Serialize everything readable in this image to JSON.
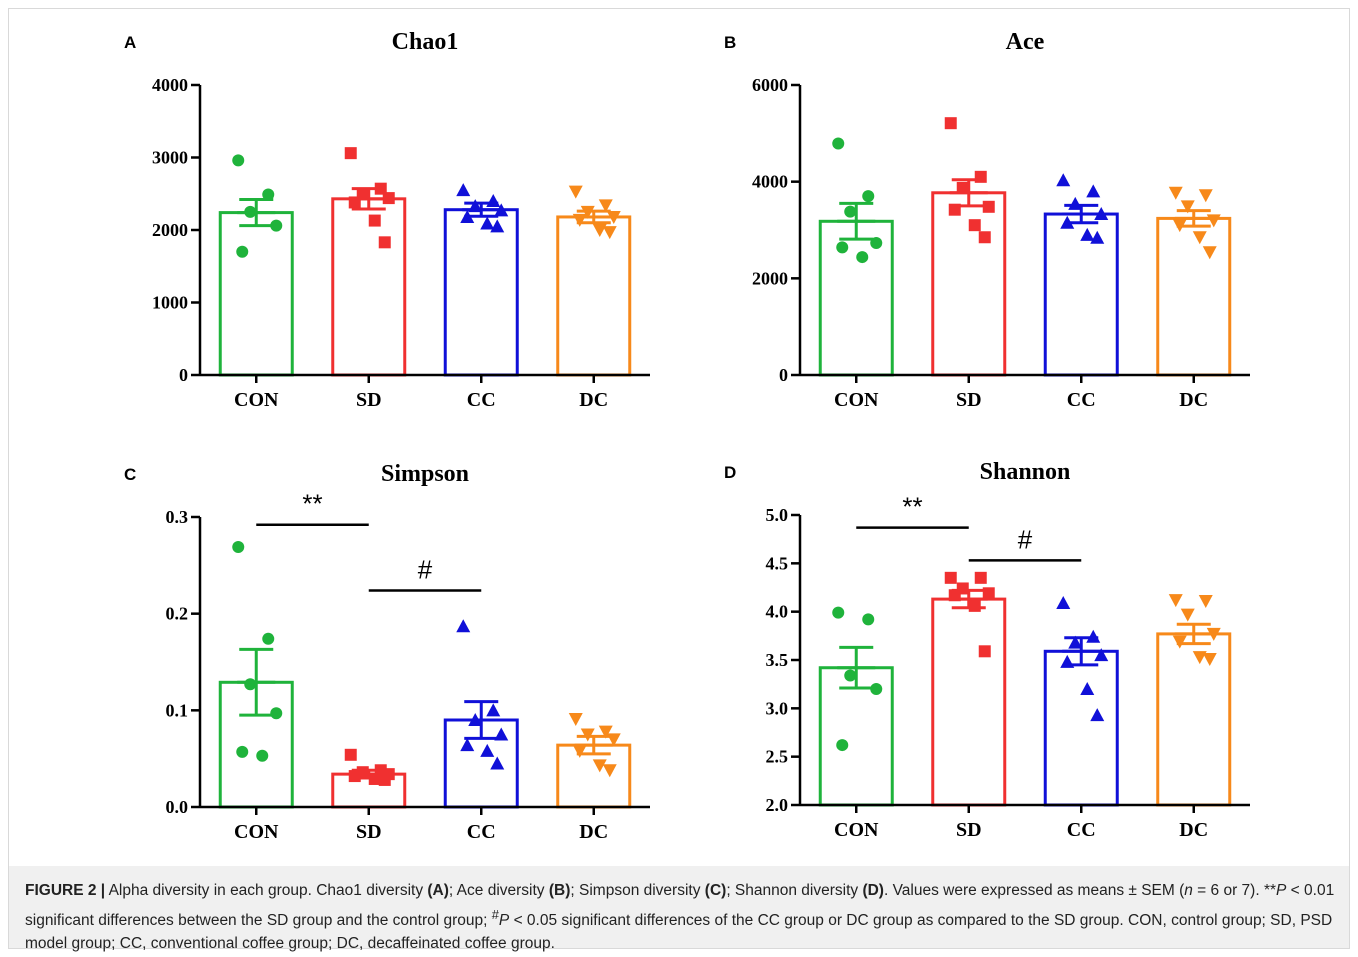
{
  "chart_data": [
    {
      "panel_letter": "A",
      "type": "bar",
      "title": "Chao1",
      "categories": [
        "CON",
        "SD",
        "CC",
        "DC"
      ],
      "ylim": [
        0,
        4000
      ],
      "yticks": [
        0,
        1000,
        2000,
        3000,
        4000
      ],
      "ytick_labels": [
        "0",
        "1000",
        "2000",
        "3000",
        "4000"
      ],
      "means": [
        2240,
        2430,
        2280,
        2180
      ],
      "sem": [
        180,
        140,
        90,
        80
      ],
      "points": [
        [
          2960,
          2490,
          2250,
          2060,
          1700
        ],
        [
          3060,
          2570,
          2500,
          2440,
          2380,
          2130,
          1830
        ],
        [
          2550,
          2400,
          2330,
          2270,
          2180,
          2090,
          2050
        ],
        [
          2530,
          2340,
          2250,
          2180,
          2140,
          2000,
          1970
        ]
      ],
      "markers": [
        "circle",
        "square",
        "triangle-up",
        "triangle-down"
      ],
      "colors": [
        "#1fb33b",
        "#f03030",
        "#1010d8",
        "#f7891a"
      ],
      "annotations": []
    },
    {
      "panel_letter": "B",
      "type": "bar",
      "title": "Ace",
      "categories": [
        "CON",
        "SD",
        "CC",
        "DC"
      ],
      "ylim": [
        0,
        6000
      ],
      "yticks": [
        0,
        2000,
        4000,
        6000
      ],
      "ytick_labels": [
        "0",
        "2000",
        "4000",
        "6000"
      ],
      "means": [
        3180,
        3770,
        3330,
        3240
      ],
      "sem": [
        370,
        270,
        180,
        160
      ],
      "points": [
        [
          4790,
          3700,
          3380,
          2730,
          2640,
          2440
        ],
        [
          5210,
          4100,
          3870,
          3480,
          3420,
          3100,
          2850
        ],
        [
          4030,
          3800,
          3540,
          3330,
          3150,
          2900,
          2840
        ],
        [
          3770,
          3720,
          3490,
          3200,
          3100,
          2850,
          2540
        ]
      ],
      "markers": [
        "circle",
        "square",
        "triangle-up",
        "triangle-down"
      ],
      "colors": [
        "#1fb33b",
        "#f03030",
        "#1010d8",
        "#f7891a"
      ],
      "annotations": []
    },
    {
      "panel_letter": "C",
      "type": "bar",
      "title": "Simpson",
      "categories": [
        "CON",
        "SD",
        "CC",
        "DC"
      ],
      "ylim": [
        0,
        0.3
      ],
      "yticks": [
        0,
        0.1,
        0.2,
        0.3
      ],
      "ytick_labels": [
        "0.0",
        "0.1",
        "0.2",
        "0.3"
      ],
      "means": [
        0.129,
        0.034,
        0.09,
        0.064
      ],
      "sem": [
        0.034,
        0.004,
        0.019,
        0.009
      ],
      "points": [
        [
          0.269,
          0.174,
          0.127,
          0.097,
          0.057,
          0.053
        ],
        [
          0.054,
          0.038,
          0.036,
          0.034,
          0.032,
          0.029,
          0.028
        ],
        [
          0.187,
          0.1,
          0.09,
          0.075,
          0.064,
          0.058,
          0.045
        ],
        [
          0.091,
          0.078,
          0.075,
          0.07,
          0.058,
          0.043,
          0.038
        ]
      ],
      "markers": [
        "circle",
        "square",
        "triangle-up",
        "triangle-down"
      ],
      "colors": [
        "#1fb33b",
        "#f03030",
        "#1010d8",
        "#f7891a"
      ],
      "annotations": [
        {
          "text": "**",
          "from": 0,
          "to": 1,
          "y": 0.292
        },
        {
          "text": "#",
          "from": 1,
          "to": 2,
          "y": 0.224
        }
      ]
    },
    {
      "panel_letter": "D",
      "type": "bar",
      "title": "Shannon",
      "categories": [
        "CON",
        "SD",
        "CC",
        "DC"
      ],
      "ylim": [
        2.0,
        5.0
      ],
      "yticks": [
        2.0,
        2.5,
        3.0,
        3.5,
        4.0,
        4.5,
        5.0
      ],
      "ytick_labels": [
        "2.0",
        "2.5",
        "3.0",
        "3.5",
        "4.0",
        "4.5",
        "5.0"
      ],
      "means": [
        3.42,
        4.13,
        3.59,
        3.77
      ],
      "sem": [
        0.21,
        0.09,
        0.14,
        0.1
      ],
      "points": [
        [
          3.99,
          3.92,
          3.34,
          3.2,
          2.62
        ],
        [
          4.35,
          4.35,
          4.24,
          4.19,
          4.17,
          4.06,
          3.59
        ],
        [
          4.09,
          3.74,
          3.68,
          3.55,
          3.48,
          3.2,
          2.93
        ],
        [
          4.12,
          4.11,
          3.97,
          3.77,
          3.69,
          3.53,
          3.51
        ]
      ],
      "markers": [
        "circle",
        "square",
        "triangle-up",
        "triangle-down"
      ],
      "colors": [
        "#1fb33b",
        "#f03030",
        "#1010d8",
        "#f7891a"
      ],
      "annotations": [
        {
          "text": "**",
          "from": 0,
          "to": 1,
          "y": 4.87
        },
        {
          "text": "#",
          "from": 1,
          "to": 2,
          "y": 4.53
        }
      ]
    }
  ],
  "caption": {
    "figure_label": "FIGURE 2 |",
    "intro": "Alpha diversity in each group. Chao1 diversity",
    "ref_a": "(A)",
    "sep_a": "; Ace diversity",
    "ref_b": "(B)",
    "sep_b": "; Simpson diversity",
    "ref_c": "(C)",
    "sep_c": "; Shannon diversity",
    "ref_d": "(D)",
    "part_2": ". Values were expressed as means ± SEM (",
    "n_symbol": "n",
    "part_3": " = 6 or 7). **",
    "p_symbol_1": "P",
    "part_4": " < 0.01 significant differences between the SD group and the control group; ",
    "hash_sup": "#",
    "p_symbol_2": "P",
    "part_5": " < 0.05 significant differences of the CC group or DC group as compared to the SD group. CON, control group; SD, PSD model group; CC, conventional coffee group; DC, decaffeinated coffee group."
  }
}
